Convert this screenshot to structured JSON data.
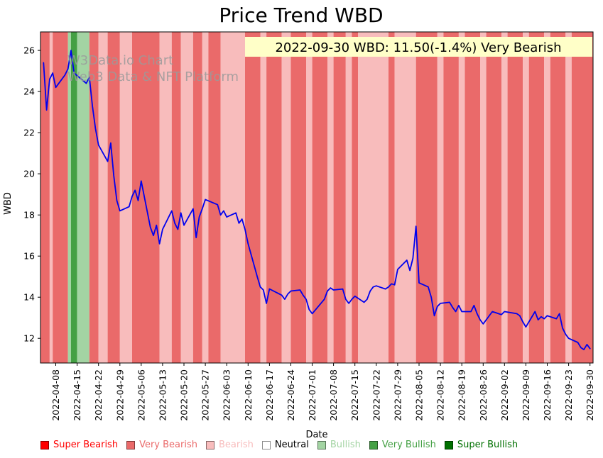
{
  "watermark": {
    "line1": "W3Data.io Chart",
    "line2": "Web3 Data & NFT Platform",
    "color": "#9b9b9b"
  },
  "annotation": {
    "text": "2022-09-30 WBD: 11.50(-1.4%) Very Bearish",
    "bg_color": "#ffffc8"
  },
  "colors": {
    "super_bearish": "#ff0000",
    "very_bearish": "#ea6a6a",
    "bearish": "#f8bcbc",
    "neutral": "#ffffff",
    "bullish": "#a3d4a3",
    "very_bullish": "#44a044",
    "super_bullish": "#007000",
    "line": "#0000ee"
  },
  "chart_data": {
    "type": "line",
    "title": "Price Trend WBD",
    "xlabel": "Date",
    "ylabel": "WBD",
    "grid": false,
    "x_ticks": [
      "2022-04-08",
      "2022-04-15",
      "2022-04-22",
      "2022-04-29",
      "2022-05-06",
      "2022-05-13",
      "2022-05-20",
      "2022-05-27",
      "2022-06-03",
      "2022-06-10",
      "2022-06-17",
      "2022-06-24",
      "2022-07-01",
      "2022-07-08",
      "2022-07-15",
      "2022-07-22",
      "2022-07-29",
      "2022-08-05",
      "2022-08-12",
      "2022-08-19",
      "2022-08-26",
      "2022-09-02",
      "2022-09-09",
      "2022-09-16",
      "2022-09-23",
      "2022-09-30"
    ],
    "y_ticks": [
      12,
      14,
      16,
      18,
      20,
      22,
      24,
      26
    ],
    "x_domain": [
      "2022-04-03",
      "2022-10-01"
    ],
    "ylim": [
      10.8,
      26.9
    ],
    "legend": {
      "position": "bottom",
      "items": [
        {
          "label": "Super Bearish",
          "key": "super_bearish"
        },
        {
          "label": "Very Bearish",
          "key": "very_bearish"
        },
        {
          "label": "Bearish",
          "key": "bearish"
        },
        {
          "label": "Neutral",
          "key": "neutral"
        },
        {
          "label": "Bullish",
          "key": "bullish"
        },
        {
          "label": "Very Bullish",
          "key": "very_bullish"
        },
        {
          "label": "Super Bullish",
          "key": "super_bullish"
        }
      ]
    },
    "series": [
      {
        "name": "WBD",
        "dates": [
          "2022-04-04",
          "2022-04-05",
          "2022-04-06",
          "2022-04-07",
          "2022-04-08",
          "2022-04-11",
          "2022-04-12",
          "2022-04-13",
          "2022-04-14",
          "2022-04-18",
          "2022-04-19",
          "2022-04-20",
          "2022-04-21",
          "2022-04-22",
          "2022-04-25",
          "2022-04-26",
          "2022-04-27",
          "2022-04-28",
          "2022-04-29",
          "2022-05-02",
          "2022-05-03",
          "2022-05-04",
          "2022-05-05",
          "2022-05-06",
          "2022-05-09",
          "2022-05-10",
          "2022-05-11",
          "2022-05-12",
          "2022-05-13",
          "2022-05-16",
          "2022-05-17",
          "2022-05-18",
          "2022-05-19",
          "2022-05-20",
          "2022-05-23",
          "2022-05-24",
          "2022-05-25",
          "2022-05-26",
          "2022-05-27",
          "2022-05-31",
          "2022-06-01",
          "2022-06-02",
          "2022-06-03",
          "2022-06-06",
          "2022-06-07",
          "2022-06-08",
          "2022-06-09",
          "2022-06-10",
          "2022-06-13",
          "2022-06-14",
          "2022-06-15",
          "2022-06-16",
          "2022-06-17",
          "2022-06-21",
          "2022-06-22",
          "2022-06-23",
          "2022-06-24",
          "2022-06-27",
          "2022-06-28",
          "2022-06-29",
          "2022-06-30",
          "2022-07-01",
          "2022-07-05",
          "2022-07-06",
          "2022-07-07",
          "2022-07-08",
          "2022-07-11",
          "2022-07-12",
          "2022-07-13",
          "2022-07-14",
          "2022-07-15",
          "2022-07-18",
          "2022-07-19",
          "2022-07-20",
          "2022-07-21",
          "2022-07-22",
          "2022-07-25",
          "2022-07-26",
          "2022-07-27",
          "2022-07-28",
          "2022-07-29",
          "2022-08-01",
          "2022-08-02",
          "2022-08-03",
          "2022-08-04",
          "2022-08-05",
          "2022-08-08",
          "2022-08-09",
          "2022-08-10",
          "2022-08-11",
          "2022-08-12",
          "2022-08-15",
          "2022-08-16",
          "2022-08-17",
          "2022-08-18",
          "2022-08-19",
          "2022-08-22",
          "2022-08-23",
          "2022-08-24",
          "2022-08-25",
          "2022-08-26",
          "2022-08-29",
          "2022-08-30",
          "2022-08-31",
          "2022-09-01",
          "2022-09-02",
          "2022-09-06",
          "2022-09-07",
          "2022-09-08",
          "2022-09-09",
          "2022-09-12",
          "2022-09-13",
          "2022-09-14",
          "2022-09-15",
          "2022-09-16",
          "2022-09-19",
          "2022-09-20",
          "2022-09-21",
          "2022-09-22",
          "2022-09-23",
          "2022-09-26",
          "2022-09-27",
          "2022-09-28",
          "2022-09-29",
          "2022-09-30"
        ],
        "values": [
          25.4,
          23.1,
          24.6,
          24.9,
          24.2,
          24.8,
          25.1,
          26.0,
          24.9,
          24.4,
          24.7,
          23.3,
          22.2,
          21.4,
          20.6,
          21.5,
          19.9,
          18.7,
          18.2,
          18.4,
          18.9,
          19.2,
          18.7,
          19.65,
          17.4,
          17.0,
          17.5,
          16.6,
          17.3,
          18.2,
          17.6,
          17.3,
          18.1,
          17.5,
          18.3,
          16.9,
          17.9,
          18.3,
          18.75,
          18.5,
          18.0,
          18.2,
          17.9,
          18.1,
          17.6,
          17.8,
          17.3,
          16.6,
          15.0,
          14.5,
          14.35,
          13.7,
          14.4,
          14.1,
          13.9,
          14.15,
          14.3,
          14.35,
          14.1,
          13.9,
          13.4,
          13.2,
          13.9,
          14.3,
          14.45,
          14.35,
          14.4,
          13.9,
          13.7,
          13.9,
          14.05,
          13.75,
          13.9,
          14.3,
          14.5,
          14.55,
          14.4,
          14.5,
          14.65,
          14.6,
          15.35,
          15.8,
          15.3,
          15.9,
          17.45,
          14.7,
          14.5,
          14.0,
          13.1,
          13.55,
          13.7,
          13.75,
          13.5,
          13.3,
          13.6,
          13.3,
          13.3,
          13.6,
          13.2,
          12.9,
          12.7,
          13.3,
          13.25,
          13.2,
          13.15,
          13.3,
          13.2,
          13.1,
          12.8,
          12.55,
          13.3,
          12.9,
          13.05,
          12.95,
          13.1,
          12.95,
          13.2,
          12.5,
          12.2,
          12.0,
          11.8,
          11.55,
          11.45,
          11.7,
          11.5
        ]
      }
    ],
    "sentiment_bands": [
      {
        "start": "2022-04-03",
        "end": "2022-04-06",
        "sentiment": "very_bearish"
      },
      {
        "start": "2022-04-06",
        "end": "2022-04-07",
        "sentiment": "bearish"
      },
      {
        "start": "2022-04-07",
        "end": "2022-04-12",
        "sentiment": "very_bearish"
      },
      {
        "start": "2022-04-12",
        "end": "2022-04-13",
        "sentiment": "bullish"
      },
      {
        "start": "2022-04-13",
        "end": "2022-04-15",
        "sentiment": "very_bullish"
      },
      {
        "start": "2022-04-15",
        "end": "2022-04-19",
        "sentiment": "bullish"
      },
      {
        "start": "2022-04-19",
        "end": "2022-04-22",
        "sentiment": "very_bearish"
      },
      {
        "start": "2022-04-22",
        "end": "2022-04-25",
        "sentiment": "bearish"
      },
      {
        "start": "2022-04-25",
        "end": "2022-04-29",
        "sentiment": "very_bearish"
      },
      {
        "start": "2022-04-29",
        "end": "2022-05-03",
        "sentiment": "bearish"
      },
      {
        "start": "2022-05-03",
        "end": "2022-05-12",
        "sentiment": "very_bearish"
      },
      {
        "start": "2022-05-12",
        "end": "2022-05-16",
        "sentiment": "bearish"
      },
      {
        "start": "2022-05-16",
        "end": "2022-05-19",
        "sentiment": "very_bearish"
      },
      {
        "start": "2022-05-19",
        "end": "2022-05-23",
        "sentiment": "bearish"
      },
      {
        "start": "2022-05-23",
        "end": "2022-05-26",
        "sentiment": "very_bearish"
      },
      {
        "start": "2022-05-26",
        "end": "2022-05-28",
        "sentiment": "bearish"
      },
      {
        "start": "2022-05-28",
        "end": "2022-06-01",
        "sentiment": "very_bearish"
      },
      {
        "start": "2022-06-01",
        "end": "2022-06-09",
        "sentiment": "bearish"
      },
      {
        "start": "2022-06-09",
        "end": "2022-06-14",
        "sentiment": "very_bearish"
      },
      {
        "start": "2022-06-14",
        "end": "2022-06-16",
        "sentiment": "bearish"
      },
      {
        "start": "2022-06-16",
        "end": "2022-06-21",
        "sentiment": "very_bearish"
      },
      {
        "start": "2022-06-21",
        "end": "2022-06-24",
        "sentiment": "bearish"
      },
      {
        "start": "2022-06-24",
        "end": "2022-06-29",
        "sentiment": "very_bearish"
      },
      {
        "start": "2022-06-29",
        "end": "2022-07-01",
        "sentiment": "bearish"
      },
      {
        "start": "2022-07-01",
        "end": "2022-07-06",
        "sentiment": "very_bearish"
      },
      {
        "start": "2022-07-06",
        "end": "2022-07-08",
        "sentiment": "bearish"
      },
      {
        "start": "2022-07-08",
        "end": "2022-07-12",
        "sentiment": "very_bearish"
      },
      {
        "start": "2022-07-12",
        "end": "2022-07-14",
        "sentiment": "bearish"
      },
      {
        "start": "2022-07-14",
        "end": "2022-07-16",
        "sentiment": "very_bearish"
      },
      {
        "start": "2022-07-16",
        "end": "2022-07-26",
        "sentiment": "bearish"
      },
      {
        "start": "2022-07-26",
        "end": "2022-07-28",
        "sentiment": "very_bearish"
      },
      {
        "start": "2022-07-28",
        "end": "2022-08-04",
        "sentiment": "bearish"
      },
      {
        "start": "2022-08-04",
        "end": "2022-08-11",
        "sentiment": "very_bearish"
      },
      {
        "start": "2022-08-11",
        "end": "2022-08-13",
        "sentiment": "bearish"
      },
      {
        "start": "2022-08-13",
        "end": "2022-08-18",
        "sentiment": "very_bearish"
      },
      {
        "start": "2022-08-18",
        "end": "2022-08-20",
        "sentiment": "bearish"
      },
      {
        "start": "2022-08-20",
        "end": "2022-08-25",
        "sentiment": "very_bearish"
      },
      {
        "start": "2022-08-25",
        "end": "2022-08-27",
        "sentiment": "bearish"
      },
      {
        "start": "2022-08-27",
        "end": "2022-09-01",
        "sentiment": "very_bearish"
      },
      {
        "start": "2022-09-01",
        "end": "2022-09-03",
        "sentiment": "bearish"
      },
      {
        "start": "2022-09-03",
        "end": "2022-09-08",
        "sentiment": "very_bearish"
      },
      {
        "start": "2022-09-08",
        "end": "2022-09-10",
        "sentiment": "bearish"
      },
      {
        "start": "2022-09-10",
        "end": "2022-09-15",
        "sentiment": "very_bearish"
      },
      {
        "start": "2022-09-15",
        "end": "2022-09-17",
        "sentiment": "bearish"
      },
      {
        "start": "2022-09-17",
        "end": "2022-09-22",
        "sentiment": "very_bearish"
      },
      {
        "start": "2022-09-22",
        "end": "2022-09-24",
        "sentiment": "bearish"
      },
      {
        "start": "2022-09-24",
        "end": "2022-10-01",
        "sentiment": "very_bearish"
      }
    ]
  }
}
